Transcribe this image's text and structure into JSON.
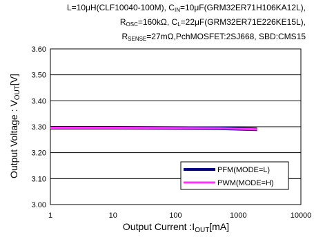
{
  "caption": {
    "line1": {
      "parts": [
        "L=10μH(CLF10040-100M), C",
        "IN",
        "=10μF(GRM32ER71H106KA12L),"
      ]
    },
    "line2": {
      "parts": [
        "R",
        "OSC",
        "=160kΩ, C",
        "L",
        "=22μF(GRM32ER71E226KE15L),"
      ]
    },
    "line3": {
      "parts": [
        "R",
        "SENSE",
        "=27mΩ,PchMOSFET:2SJ668, SBD:CMS15"
      ]
    }
  },
  "chart_data": {
    "type": "line",
    "xscale": "log",
    "xlim": [
      1,
      10000
    ],
    "ylim": [
      3.0,
      3.6
    ],
    "x_ticks": [
      "1",
      "10",
      "100",
      "1000",
      "10000"
    ],
    "y_ticks": [
      "3.00",
      "3.10",
      "3.20",
      "3.30",
      "3.40",
      "3.50",
      "3.60"
    ],
    "xlabel": {
      "main": "Output Current :I",
      "sub": "OUT",
      "unit": "[mA]"
    },
    "ylabel": {
      "main": "Output Voltage : V",
      "sub": "OUT",
      "unit": "[V]"
    },
    "grid": "horizontal",
    "legend_position": "lower-right",
    "series": [
      {
        "name": "PFM(MODE=L)",
        "color": "#000080",
        "x": [
          1,
          10,
          100,
          500,
          1000,
          2000
        ],
        "y": [
          3.296,
          3.296,
          3.295,
          3.294,
          3.292,
          3.29
        ]
      },
      {
        "name": "PWM(MODE=H)",
        "color": "#ff33ff",
        "x": [
          1,
          10,
          100,
          500,
          1000,
          2000
        ],
        "y": [
          3.296,
          3.296,
          3.295,
          3.294,
          3.292,
          3.29
        ]
      }
    ]
  }
}
